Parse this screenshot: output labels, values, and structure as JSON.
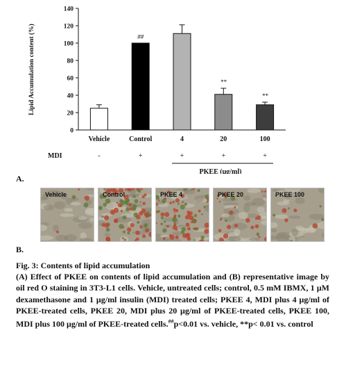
{
  "figure": {
    "panel_a_label": "A.",
    "panel_b_label": "B.",
    "mdi_label": "MDI",
    "mdi_values": [
      "-",
      "+",
      "+",
      "+",
      "+"
    ],
    "pkee_group_label": "PKEE (μg/ml)"
  },
  "chart_data": {
    "type": "bar",
    "categories": [
      "Vehicle",
      "Control",
      "4",
      "20",
      "100"
    ],
    "values": [
      25,
      100,
      111,
      41,
      29
    ],
    "errors": [
      4,
      0,
      10,
      7,
      3
    ],
    "annotations": [
      "",
      "##",
      "",
      "**",
      "**"
    ],
    "bar_colors": [
      "#ffffff",
      "#000000",
      "#b3b3b3",
      "#8c8c8c",
      "#3d3d3d"
    ],
    "ylabel": "Lipid Accumulation content (%)",
    "xlabel": "",
    "ylim": [
      0,
      140
    ],
    "yticks": [
      0,
      20,
      40,
      60,
      80,
      100,
      120,
      140
    ],
    "grid": false
  },
  "micrographs": [
    {
      "label": "Vehicle",
      "icon": "microscopy-image",
      "stain_level": 0.05
    },
    {
      "label": "Control",
      "icon": "microscopy-image",
      "stain_level": 0.9
    },
    {
      "label": "PKEE 4",
      "icon": "microscopy-image",
      "stain_level": 0.85
    },
    {
      "label": "PKEE 20",
      "icon": "microscopy-image",
      "stain_level": 0.3
    },
    {
      "label": "PKEE 100",
      "icon": "microscopy-image",
      "stain_level": 0.1
    }
  ],
  "caption": {
    "title": "Fig. 3: Contents of lipid accumulation",
    "body": "(A) Effect of PKEE on contents of lipid accumulation and (B) representative image by oil red O staining in 3T3-L1 cells. Vehicle, untreated cells; control, 0.5 mM IBMX, 1 μM dexamethasone and 1 μg/ml insulin (MDI) treated cells; PKEE 4, MDI plus 4 μg/ml of PKEE-treated cells, PKEE 20, MDI plus 20 μg/ml of PKEE-treated cells, PKEE 100, MDI plus 100 μg/ml of PKEE-treated cells.",
    "sup": "##",
    "tail": "p<0.01 vs. vehicle, **p< 0.01 vs. control"
  }
}
